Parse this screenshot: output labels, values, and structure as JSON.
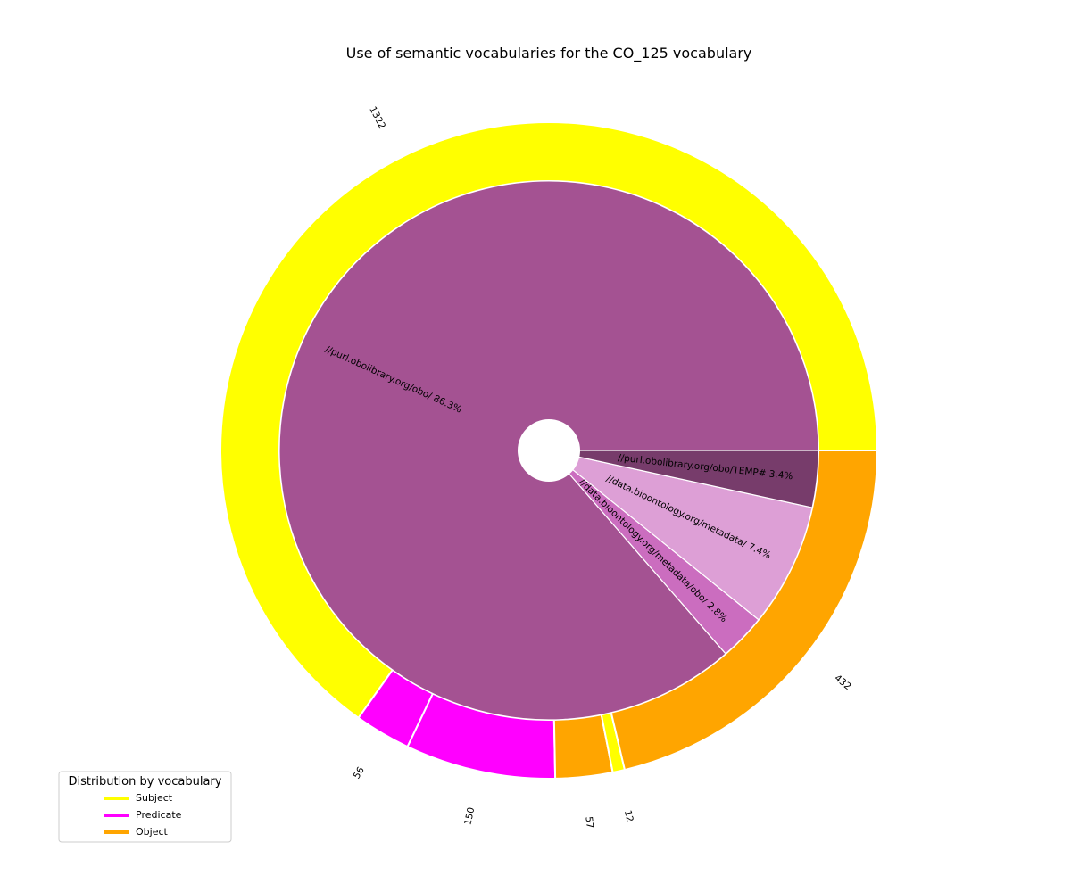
{
  "chart_data": {
    "type": "pie",
    "title": "Use of semantic vocabularies for the CO_125 vocabulary",
    "inner_ring": {
      "slices": [
        {
          "label": "//purl.obolibrary.org/obo/",
          "pct_label": "86.3%",
          "value": 86.3,
          "color": "#a45292"
        },
        {
          "label": "//data.bioontology.org/metadata/obo/",
          "pct_label": "2.8%",
          "value": 2.8,
          "color": "#cb6dbf"
        },
        {
          "label": "//data.bioontology.org/metadata/",
          "pct_label": "7.4%",
          "value": 7.4,
          "color": "#dd9fd6"
        },
        {
          "label": "//purl.obolibrary.org/obo/TEMP#",
          "pct_label": "3.4%",
          "value": 3.4,
          "color": "#773c6b"
        }
      ]
    },
    "outer_ring": {
      "slices": [
        {
          "label": "1322",
          "value": 1322,
          "role": "Subject",
          "color": "#ffff00"
        },
        {
          "label": "56",
          "value": 56,
          "role": "Predicate",
          "color": "#ff00ff"
        },
        {
          "label": "150",
          "value": 150,
          "role": "Predicate",
          "color": "#ff00ff"
        },
        {
          "label": "57",
          "value": 57,
          "role": "Object",
          "color": "#ffa500"
        },
        {
          "label": "12",
          "value": 12,
          "role": "Subject",
          "color": "#ffff00"
        },
        {
          "label": "432",
          "value": 432,
          "role": "Object",
          "color": "#ffa500"
        }
      ]
    },
    "legend": {
      "title": "Distribution by vocabulary",
      "placement": "lower-left",
      "entries": [
        {
          "label": "Subject",
          "color": "#ffff00"
        },
        {
          "label": "Predicate",
          "color": "#ff00ff"
        },
        {
          "label": "Object",
          "color": "#ffa500"
        }
      ]
    }
  }
}
